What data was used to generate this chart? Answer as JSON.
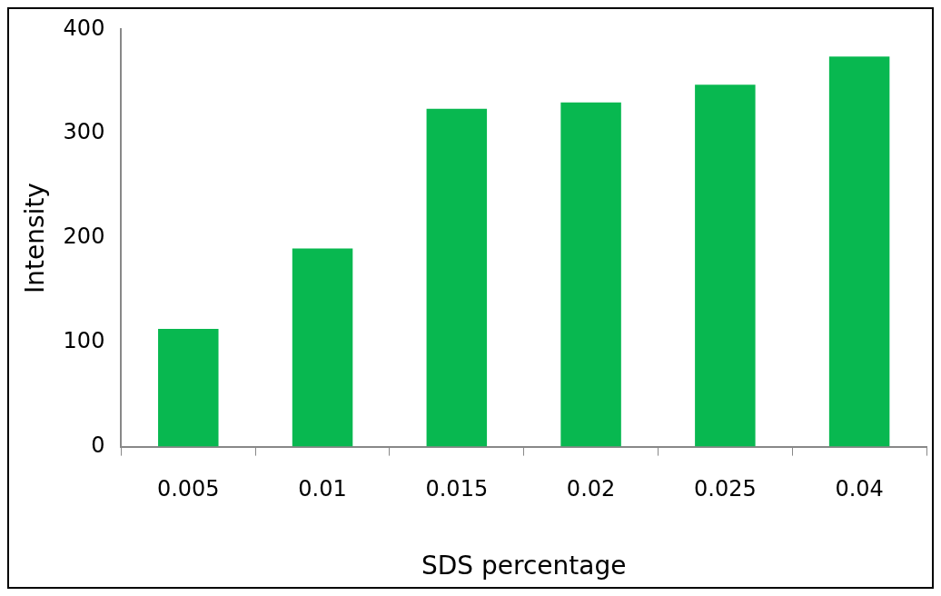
{
  "chart_data": {
    "type": "bar",
    "xlabel": "SDS percentage",
    "ylabel": "Intensity",
    "categories": [
      "0.005",
      "0.01",
      "0.015",
      "0.02",
      "0.025",
      "0.04"
    ],
    "values": [
      113,
      190,
      324,
      330,
      347,
      374
    ],
    "color": "#08b850",
    "ylim": [
      0,
      400
    ],
    "yticks": [
      0,
      100,
      200,
      300,
      400
    ],
    "grid": false,
    "legend": false
  }
}
